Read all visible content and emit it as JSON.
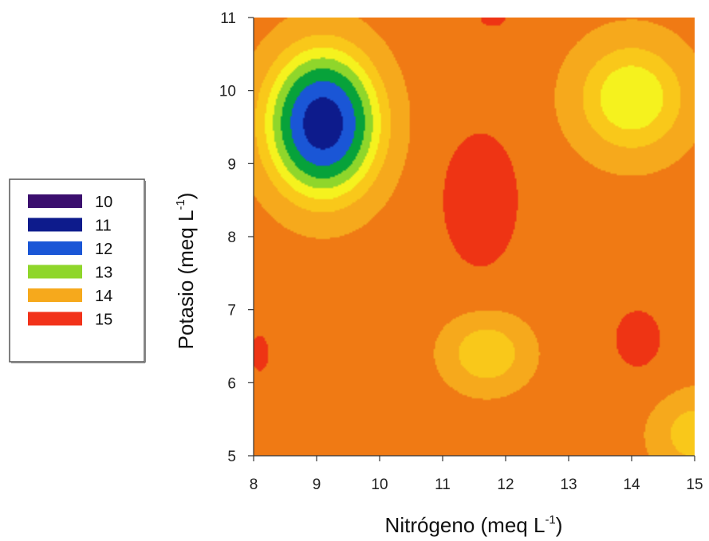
{
  "chart_data": {
    "type": "heatmap",
    "subtype": "filled-contour",
    "title": "",
    "xlabel": "Nitrógeno (meq L-1)",
    "xlabel_main": "Nitrógeno (meq L",
    "xlabel_sup": "-1",
    "xlabel_close": ")",
    "ylabel": "Potasio (meq L-1)",
    "ylabel_main": "Potasio (meq L",
    "ylabel_sup": "-1",
    "ylabel_close": ")",
    "xlim": [
      8,
      15
    ],
    "ylim": [
      5,
      11
    ],
    "xticks": [
      8,
      9,
      10,
      11,
      12,
      13,
      14,
      15
    ],
    "yticks": [
      5,
      6,
      7,
      8,
      9,
      10,
      11
    ],
    "legend": {
      "placement": "left",
      "entries": [
        {
          "label": "10",
          "value": 10,
          "color": "#3b0f6e"
        },
        {
          "label": "11",
          "value": 11,
          "color": "#0d1b8c"
        },
        {
          "label": "12",
          "value": 12,
          "color": "#1a56d6"
        },
        {
          "label": "13",
          "value": 13,
          "color": "#8fd62b"
        },
        {
          "label": "14",
          "value": 14,
          "color": "#f6a91c"
        },
        {
          "label": "15",
          "value": 15,
          "color": "#f2321a"
        }
      ]
    },
    "colorscale": [
      {
        "value": 9.6,
        "color": "#3b0f6e"
      },
      {
        "value": 10.5,
        "color": "#0d1b8c"
      },
      {
        "value": 11.5,
        "color": "#1a56d6"
      },
      {
        "value": 12.3,
        "color": "#07a23a"
      },
      {
        "value": 12.9,
        "color": "#8fd62b"
      },
      {
        "value": 13.4,
        "color": "#f5f21e"
      },
      {
        "value": 13.85,
        "color": "#f9c81a"
      },
      {
        "value": 14.3,
        "color": "#f6a91c"
      },
      {
        "value": 14.75,
        "color": "#f07a14"
      },
      {
        "value": 15.3,
        "color": "#ee3414"
      }
    ],
    "surface_baseline": 14.45,
    "features": [
      {
        "x": 9.1,
        "y": 9.55,
        "amplitude": -4.7,
        "sx": 0.75,
        "sy": 0.85
      },
      {
        "x": 11.6,
        "y": 8.5,
        "amplitude": 0.95,
        "sx": 0.55,
        "sy": 0.85
      },
      {
        "x": 14.0,
        "y": 9.9,
        "amplitude": -1.55,
        "sx": 0.8,
        "sy": 0.7
      },
      {
        "x": 11.7,
        "y": 6.4,
        "amplitude": -1.05,
        "sx": 0.6,
        "sy": 0.45
      },
      {
        "x": 14.1,
        "y": 6.6,
        "amplitude": 0.45,
        "sx": 0.55,
        "sy": 0.6
      },
      {
        "x": 15.0,
        "y": 5.3,
        "amplitude": -0.9,
        "sx": 0.6,
        "sy": 0.5
      },
      {
        "x": 8.1,
        "y": 6.4,
        "amplitude": 0.35,
        "sx": 0.35,
        "sy": 0.6
      },
      {
        "x": 11.8,
        "y": 11.0,
        "amplitude": 0.35,
        "sx": 0.5,
        "sy": 0.3
      },
      {
        "x": 9.0,
        "y": 5.0,
        "amplitude": 0.3,
        "sx": 0.5,
        "sy": 0.3
      }
    ]
  }
}
